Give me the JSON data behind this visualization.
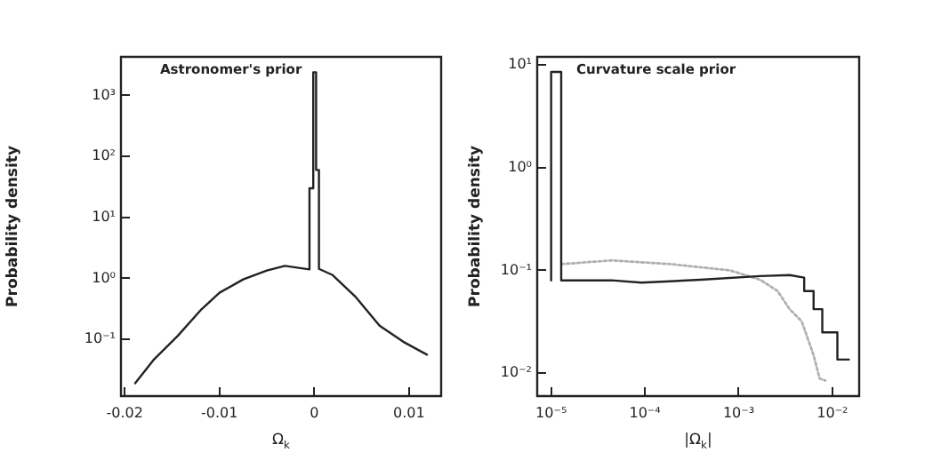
{
  "chart_data": [
    {
      "type": "line",
      "title": "Astronomer's prior",
      "xlabel": "Ω$_{k}$",
      "ylabel": "Probability density",
      "log": "y",
      "marker": "none",
      "xlim": [
        -0.0204,
        0.0134
      ],
      "ylim": [
        0.0117,
        4300
      ],
      "xticks": [
        -0.02,
        -0.01,
        0,
        0.01
      ],
      "yticks": [
        {
          "value": 0.1,
          "label": "10⁻¹"
        },
        {
          "value": 1,
          "label": "10⁰"
        },
        {
          "value": 10,
          "label": "10¹"
        },
        {
          "value": 100,
          "label": "10²"
        },
        {
          "value": 1000,
          "label": "10³"
        }
      ],
      "series": [
        {
          "color": "#222222",
          "x": [
            -0.0189,
            -0.0169,
            -0.0144,
            -0.0119,
            -0.01,
            -0.0075,
            -0.005,
            -0.0031,
            -0.0005,
            -0.0005,
            -0.0001,
            -0.0001,
            0.0002,
            0.0002,
            0.0005,
            0.0005,
            0.0019,
            0.0044,
            0.0069,
            0.0094,
            0.0119
          ],
          "values": [
            0.019,
            0.047,
            0.114,
            0.31,
            0.58,
            0.96,
            1.34,
            1.6,
            1.4,
            30,
            30,
            2400,
            2400,
            60,
            60,
            1.43,
            1.14,
            0.49,
            0.167,
            0.091,
            0.056
          ]
        }
      ]
    },
    {
      "type": "line",
      "title": "Curvature scale prior",
      "xlabel": "|Ω$_{k}$|",
      "ylabel": "Probability density",
      "log": "xy",
      "marker": "none",
      "xlim": [
        7.1e-06,
        0.0193
      ],
      "ylim": [
        0.006,
        11.9
      ],
      "xticks": [
        {
          "value": 1e-05,
          "label": "10⁻⁵"
        },
        {
          "value": 0.0001,
          "label": "10⁻⁴"
        },
        {
          "value": 0.001,
          "label": "10⁻³"
        },
        {
          "value": 0.01,
          "label": "10⁻²"
        }
      ],
      "yticks": [
        {
          "value": 0.01,
          "label": "10⁻²"
        },
        {
          "value": 0.1,
          "label": "10⁻¹"
        },
        {
          "value": 1,
          "label": "10⁰"
        },
        {
          "value": 10,
          "label": "10¹"
        }
      ],
      "series": [
        {
          "color": "#222222",
          "line_style": "solid",
          "x": [
            1e-05,
            1e-05,
            1.28e-05,
            1.28e-05,
            4.4e-05,
            9.2e-05,
            0.00039,
            0.0017,
            0.0035,
            0.005,
            0.005,
            0.0063,
            0.0063,
            0.0078,
            0.0078,
            0.0113,
            0.0113,
            0.015
          ],
          "values": [
            0.08,
            8.5,
            8.5,
            0.08,
            0.08,
            0.076,
            0.081,
            0.088,
            0.09,
            0.085,
            0.063,
            0.063,
            0.042,
            0.042,
            0.025,
            0.025,
            0.0136,
            0.0136
          ]
        },
        {
          "color": "#b0b0b0",
          "line_style": "dotted",
          "x": [
            1.28e-05,
            4.4e-05,
            0.00019,
            0.00081,
            0.0017,
            0.0026,
            0.0035,
            0.0047,
            0.0063,
            0.0073,
            0.0084
          ],
          "values": [
            0.115,
            0.125,
            0.115,
            0.1,
            0.081,
            0.063,
            0.042,
            0.032,
            0.015,
            0.0089,
            0.0085
          ]
        }
      ]
    }
  ]
}
